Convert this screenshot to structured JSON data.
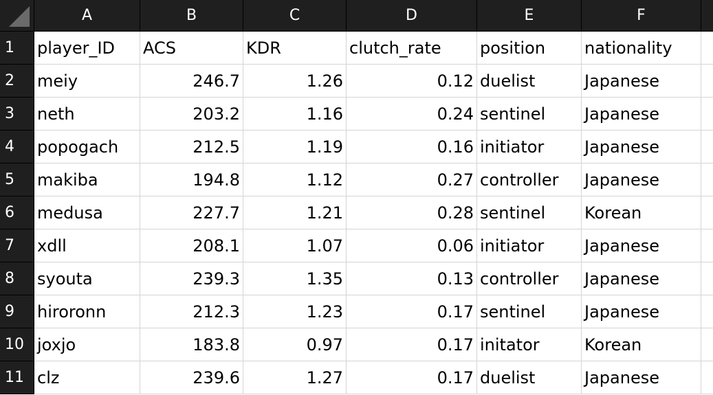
{
  "columns": [
    "A",
    "B",
    "C",
    "D",
    "E",
    "F"
  ],
  "rows": [
    "1",
    "2",
    "3",
    "4",
    "5",
    "6",
    "7",
    "8",
    "9",
    "10",
    "11"
  ],
  "cells": [
    [
      "player_ID",
      "ACS",
      "KDR",
      "clutch_rate",
      "position",
      "nationality"
    ],
    [
      "meiy",
      "246.7",
      "1.26",
      "0.12",
      "duelist",
      "Japanese"
    ],
    [
      "neth",
      "203.2",
      "1.16",
      "0.24",
      "sentinel",
      "Japanese"
    ],
    [
      "popogach",
      "212.5",
      "1.19",
      "0.16",
      "initiator",
      "Japanese"
    ],
    [
      "makiba",
      "194.8",
      "1.12",
      "0.27",
      "controller",
      "Japanese"
    ],
    [
      "medusa",
      "227.7",
      "1.21",
      "0.28",
      "sentinel",
      "Korean"
    ],
    [
      "xdll",
      "208.1",
      "1.07",
      "0.06",
      "initiator",
      "Japanese"
    ],
    [
      "syouta",
      "239.3",
      "1.35",
      "0.13",
      "controller",
      "Japanese"
    ],
    [
      "hiroronn",
      "212.3",
      "1.23",
      "0.17",
      "sentinel",
      "Japanese"
    ],
    [
      "joxjo",
      "183.8",
      "0.97",
      "0.17",
      "initator",
      "Korean"
    ],
    [
      "clz",
      "239.6",
      "1.27",
      "0.17",
      "duelist",
      "Japanese"
    ]
  ],
  "alignment": [
    "left",
    "right",
    "right",
    "right",
    "left",
    "left"
  ],
  "colors": {
    "header_bg": "#1f1f1f",
    "header_text": "#ffffff",
    "cell_bg": "#ffffff",
    "gridline": "#d4d4d4"
  },
  "icons": {
    "corner": "select-all-triangle-icon"
  }
}
